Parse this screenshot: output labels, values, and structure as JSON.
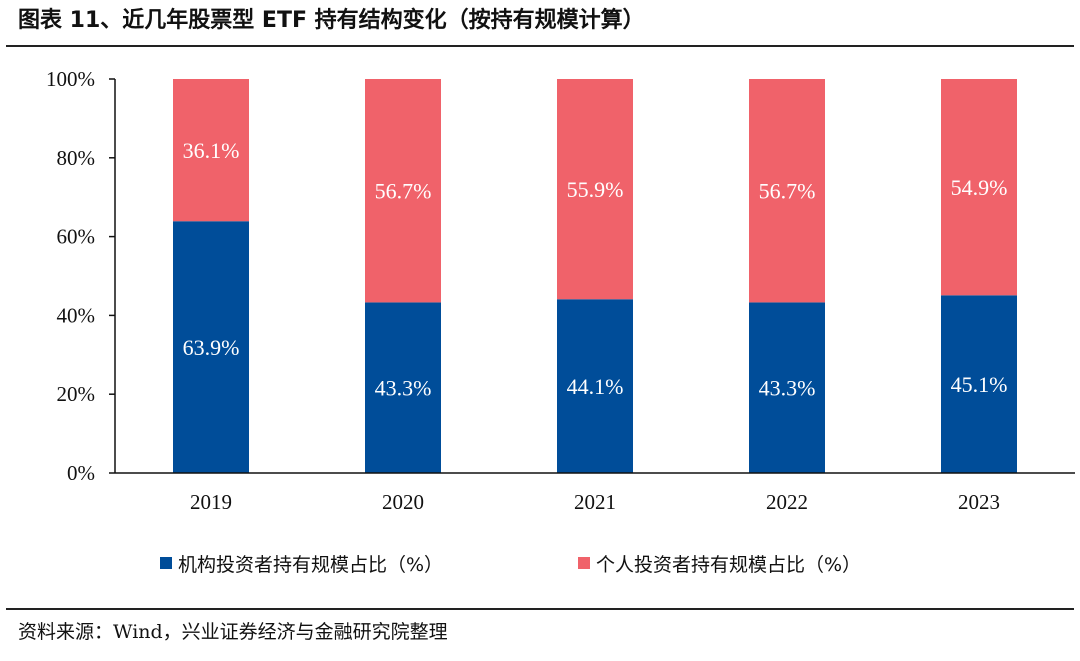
{
  "title": "图表 11、近几年股票型 ETF 持有结构变化（按持有规模计算）",
  "source": "资料来源：Wind，兴业证券经济与金融研究院整理",
  "chart_data": {
    "type": "bar",
    "stacked": true,
    "categories": [
      "2019",
      "2020",
      "2021",
      "2022",
      "2023"
    ],
    "series": [
      {
        "name": "机构投资者持有规模占比（%）",
        "color": "#004d99",
        "values": [
          63.9,
          43.3,
          44.1,
          43.3,
          45.1
        ]
      },
      {
        "name": "个人投资者持有规模占比（%）",
        "color": "#f0626a",
        "values": [
          36.1,
          56.7,
          55.9,
          56.7,
          54.9
        ]
      }
    ],
    "ylim": [
      0,
      100
    ],
    "yticks": [
      "0%",
      "20%",
      "40%",
      "60%",
      "80%",
      "100%"
    ],
    "legend_position": "bottom",
    "grid": false
  }
}
